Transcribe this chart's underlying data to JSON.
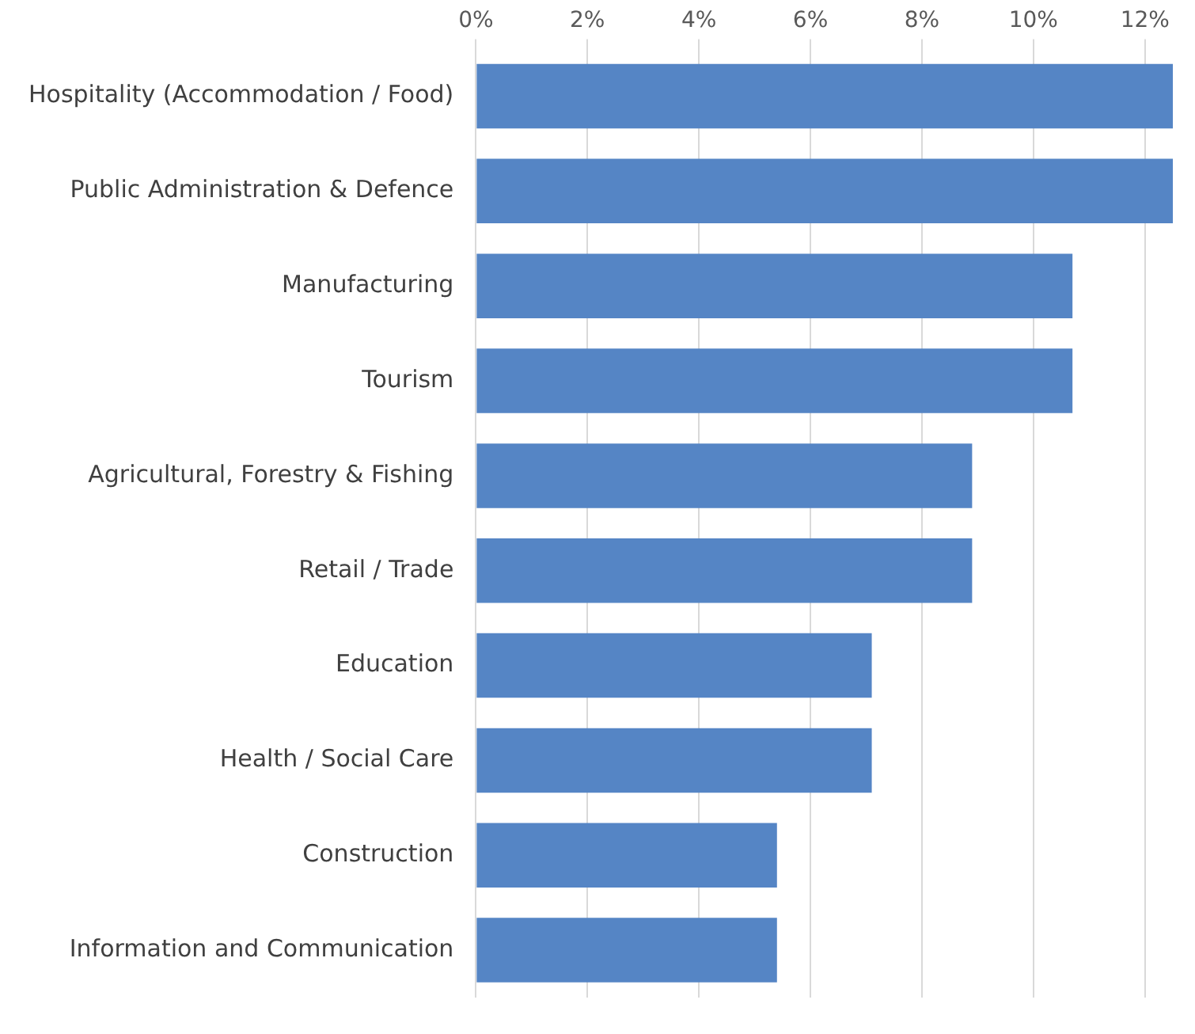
{
  "chart_data": {
    "type": "bar",
    "orientation": "horizontal",
    "categories": [
      "Hospitality (Accommodation / Food)",
      "Public Administration & Defence",
      "Manufacturing",
      "Tourism",
      "Agricultural, Forestry & Fishing",
      "Retail / Trade",
      "Education",
      "Health / Social Care",
      "Construction",
      "Information and Communication"
    ],
    "values": [
      12.5,
      12.5,
      10.7,
      10.7,
      8.9,
      8.9,
      7.1,
      7.1,
      5.4,
      5.4
    ],
    "color": "#5585c5",
    "xlim": [
      0,
      12.5
    ],
    "xticks": [
      {
        "value": 0,
        "label": "0%"
      },
      {
        "value": 2,
        "label": "2%"
      },
      {
        "value": 4,
        "label": "4%"
      },
      {
        "value": 6,
        "label": "6%"
      },
      {
        "value": 8,
        "label": "8%"
      },
      {
        "value": 10,
        "label": "10%"
      },
      {
        "value": 12,
        "label": "12%"
      }
    ],
    "grid": "x",
    "legend": false
  }
}
